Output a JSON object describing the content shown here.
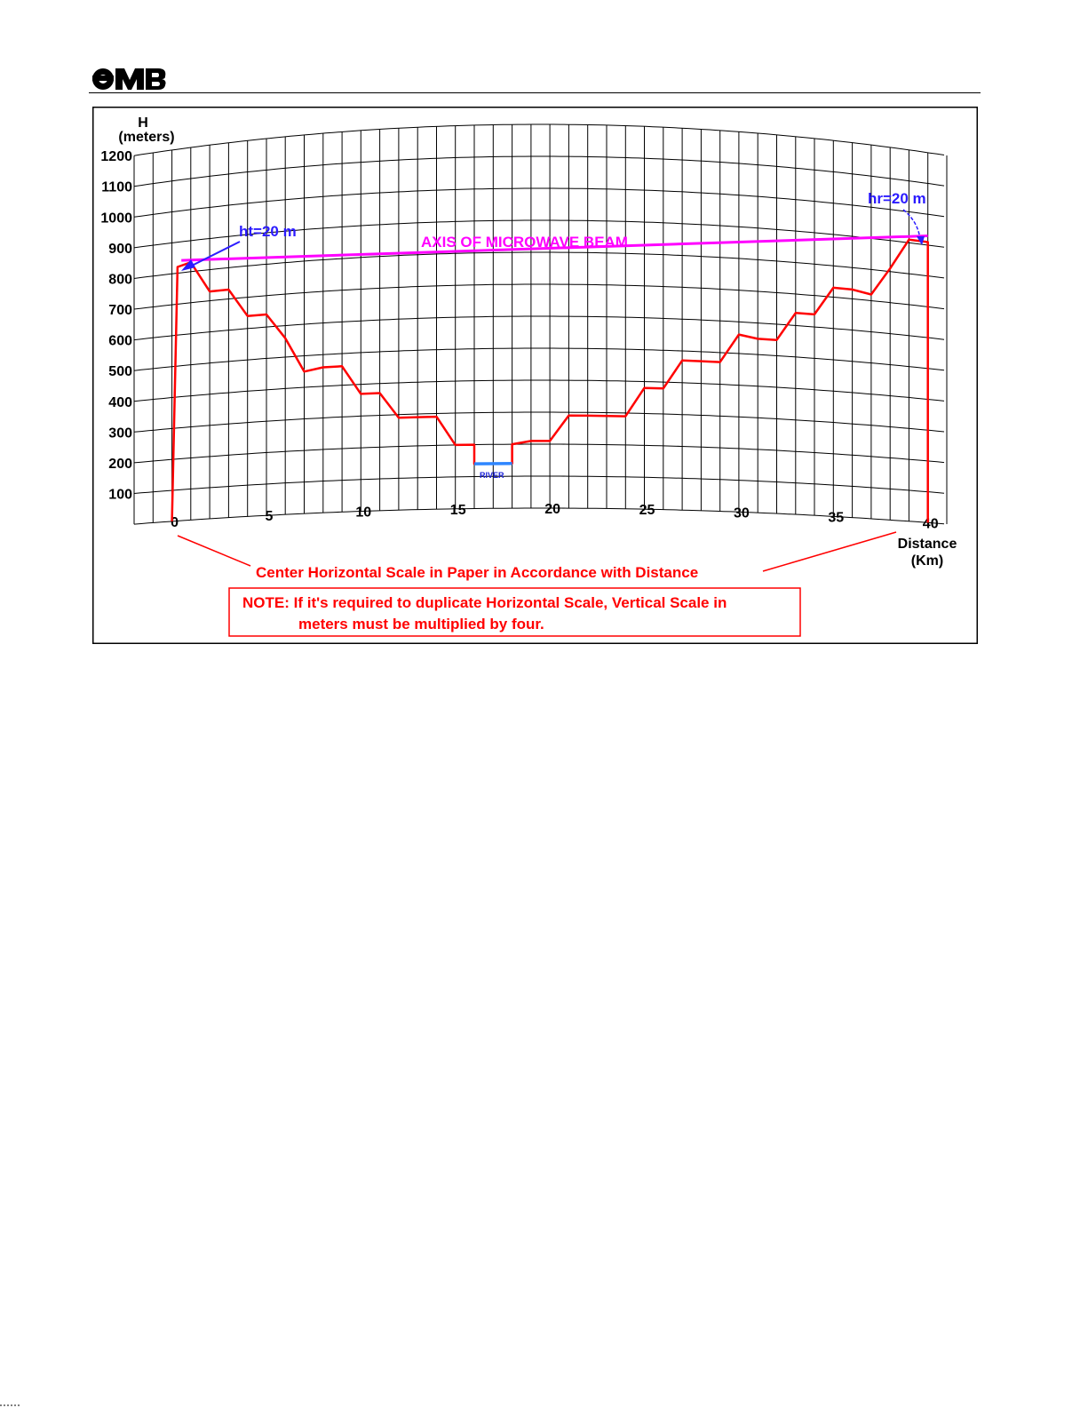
{
  "header": {
    "logo_text": "OMB",
    "logo_icon": "omb-logo-icon"
  },
  "chart_data": {
    "type": "line",
    "xlabel": [
      "Distance",
      "(Km)"
    ],
    "ylabel": [
      "H",
      "(meters)"
    ],
    "x_ticks": [
      0,
      5,
      10,
      15,
      20,
      25,
      30,
      35,
      40
    ],
    "y_ticks": [
      100,
      200,
      300,
      400,
      500,
      600,
      700,
      800,
      900,
      1000,
      1100,
      1200
    ],
    "xlim": [
      -2,
      41
    ],
    "ylim": [
      0,
      1200
    ],
    "grid": true,
    "grid_style": "curved earth-bulge grid",
    "series": [
      {
        "color": "#ff0000",
        "description": "terrain profile",
        "x": [
          0,
          0.3,
          1,
          2,
          3,
          4,
          5,
          6,
          7,
          8,
          9,
          10,
          11,
          12,
          13,
          14,
          15,
          16,
          16,
          18,
          18,
          19,
          20,
          21,
          22,
          23,
          24,
          25,
          26,
          27,
          28,
          29,
          30,
          31,
          32,
          33,
          34,
          35,
          36,
          37,
          38,
          39,
          40,
          40
        ],
        "y": [
          0,
          820,
          830,
          730,
          730,
          640,
          640,
          560,
          450,
          460,
          460,
          370,
          370,
          290,
          290,
          290,
          200,
          200,
          140,
          140,
          200,
          210,
          210,
          290,
          290,
          290,
          290,
          380,
          380,
          470,
          470,
          470,
          560,
          550,
          550,
          640,
          640,
          730,
          730,
          720,
          810,
          910,
          910,
          0
        ]
      },
      {
        "color": "#ff00ff",
        "name": "AXIS OF MICROWAVE BEAM",
        "x": [
          0.5,
          40
        ],
        "y": [
          840,
          930
        ]
      },
      {
        "color": "#2e86ff",
        "name": "RIVER",
        "x": [
          16,
          18
        ],
        "y": [
          140,
          140
        ]
      }
    ],
    "annotations": {
      "ht": "ht=20 m",
      "hr": "hr=20 m",
      "beam": "AXIS OF MICROWAVE BEAM",
      "river": "RIVER",
      "center_note": "Center Horizontal Scale in Paper in Accordance with Distance",
      "note_lines": [
        "NOTE: If it's required to duplicate Horizontal Scale, Vertical Scale in",
        "meters must be multiplied by four."
      ]
    }
  },
  "colors": {
    "terrain": "#ff0000",
    "beam": "#ff00ff",
    "river": "#2e86ff",
    "height_labels": "#2b1bff",
    "note": "#ff0000",
    "grid": "#000000"
  }
}
